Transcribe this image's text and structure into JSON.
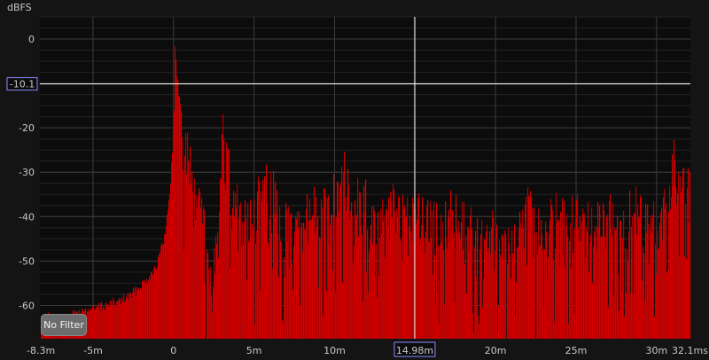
{
  "colors": {
    "background": "#141414",
    "plot_background": "#0c0c0c",
    "grid_major": "#3c3c3c",
    "grid_minor": "#242424",
    "trace": "#b00000",
    "trace_edge": "#d40000",
    "cursor": "#ffffff",
    "readout_border": "#8a8aff"
  },
  "filter_button": {
    "label": "No Filter"
  },
  "cursor": {
    "x_label": "14.98m",
    "y_label": "-10.1",
    "x_value_ms": 14.98,
    "y_value_dbfs": -10.1
  },
  "chart_data": {
    "type": "area",
    "ylabel": "dBFS",
    "x_unit": "ms",
    "xlim": [
      -8.3,
      32.1
    ],
    "ylim": [
      -67.5,
      5
    ],
    "grid": true,
    "x_ticks": [
      {
        "value": -8.3,
        "label": "-8.3m"
      },
      {
        "value": -5,
        "label": "-5m"
      },
      {
        "value": 0,
        "label": "0"
      },
      {
        "value": 5,
        "label": "5m"
      },
      {
        "value": 10,
        "label": "10m"
      },
      {
        "value": 20,
        "label": "20m"
      },
      {
        "value": 25,
        "label": "25m"
      },
      {
        "value": 30,
        "label": "30m"
      },
      {
        "value": 32.1,
        "label": "32.1ms"
      }
    ],
    "y_ticks": [
      {
        "value": 0,
        "label": "0"
      },
      {
        "value": -20,
        "label": "-20"
      },
      {
        "value": -30,
        "label": "-30"
      },
      {
        "value": -40,
        "label": "-40"
      },
      {
        "value": -50,
        "label": "-50"
      },
      {
        "value": -60,
        "label": "-60"
      }
    ],
    "envelope": [
      [
        -8.3,
        -62.5
      ],
      [
        -8.0,
        -61
      ],
      [
        -7.5,
        -62
      ],
      [
        -7.0,
        -62.5
      ],
      [
        -6.5,
        -61.5
      ],
      [
        -6.0,
        -60.5
      ],
      [
        -5.5,
        -60
      ],
      [
        -5.0,
        -59.5
      ],
      [
        -4.5,
        -59
      ],
      [
        -4.0,
        -58.5
      ],
      [
        -3.5,
        -58
      ],
      [
        -3.0,
        -57
      ],
      [
        -2.5,
        -56
      ],
      [
        -2.0,
        -54
      ],
      [
        -1.5,
        -52
      ],
      [
        -1.0,
        -49
      ],
      [
        -0.5,
        -42
      ],
      [
        -0.2,
        -30
      ],
      [
        0.0,
        -18
      ],
      [
        0.05,
        0
      ],
      [
        0.2,
        -8
      ],
      [
        0.4,
        -14
      ],
      [
        0.6,
        -17
      ],
      [
        0.8,
        -20
      ],
      [
        1.0,
        -22
      ],
      [
        1.2,
        -24
      ],
      [
        1.5,
        -31
      ],
      [
        1.8,
        -36
      ],
      [
        2.0,
        -42
      ],
      [
        2.3,
        -47
      ],
      [
        2.5,
        -45
      ],
      [
        2.8,
        -32
      ],
      [
        3.0,
        -10
      ],
      [
        3.2,
        -22
      ],
      [
        3.6,
        -27
      ],
      [
        4.0,
        -32
      ],
      [
        4.5,
        -34
      ],
      [
        5.0,
        -36
      ],
      [
        5.5,
        -22
      ],
      [
        6.0,
        -27
      ],
      [
        6.5,
        -33
      ],
      [
        7.0,
        -36
      ],
      [
        7.5,
        -40
      ],
      [
        8.0,
        -35
      ],
      [
        8.5,
        -31
      ],
      [
        9.0,
        -32
      ],
      [
        9.5,
        -34
      ],
      [
        10.0,
        -28
      ],
      [
        10.5,
        -24
      ],
      [
        11.0,
        -30
      ],
      [
        11.5,
        -29
      ],
      [
        12.0,
        -32
      ],
      [
        12.5,
        -33
      ],
      [
        13.0,
        -35
      ],
      [
        13.5,
        -31
      ],
      [
        14.0,
        -34
      ],
      [
        14.5,
        -35
      ],
      [
        15.0,
        -33
      ],
      [
        15.5,
        -36
      ],
      [
        16.0,
        -33
      ],
      [
        16.5,
        -37
      ],
      [
        17.0,
        -34
      ],
      [
        17.5,
        -31
      ],
      [
        18.0,
        -35
      ],
      [
        18.5,
        -38
      ],
      [
        19.0,
        -34
      ],
      [
        19.5,
        -36
      ],
      [
        20.0,
        -35
      ],
      [
        20.5,
        -38
      ],
      [
        21.0,
        -36
      ],
      [
        21.5,
        -34
      ],
      [
        22.0,
        -33
      ],
      [
        22.5,
        -37
      ],
      [
        23.0,
        -34
      ],
      [
        23.5,
        -32
      ],
      [
        24.0,
        -36
      ],
      [
        24.5,
        -35
      ],
      [
        25.0,
        -34
      ],
      [
        25.5,
        -36
      ],
      [
        26.0,
        -31
      ],
      [
        26.5,
        -35
      ],
      [
        27.0,
        -33
      ],
      [
        27.5,
        -36
      ],
      [
        28.0,
        -34
      ],
      [
        28.5,
        -32
      ],
      [
        29.0,
        -35
      ],
      [
        29.5,
        -33
      ],
      [
        30.0,
        -34
      ],
      [
        30.5,
        -31
      ],
      [
        31.0,
        -22
      ],
      [
        31.5,
        -26
      ],
      [
        32.1,
        -30
      ]
    ]
  }
}
